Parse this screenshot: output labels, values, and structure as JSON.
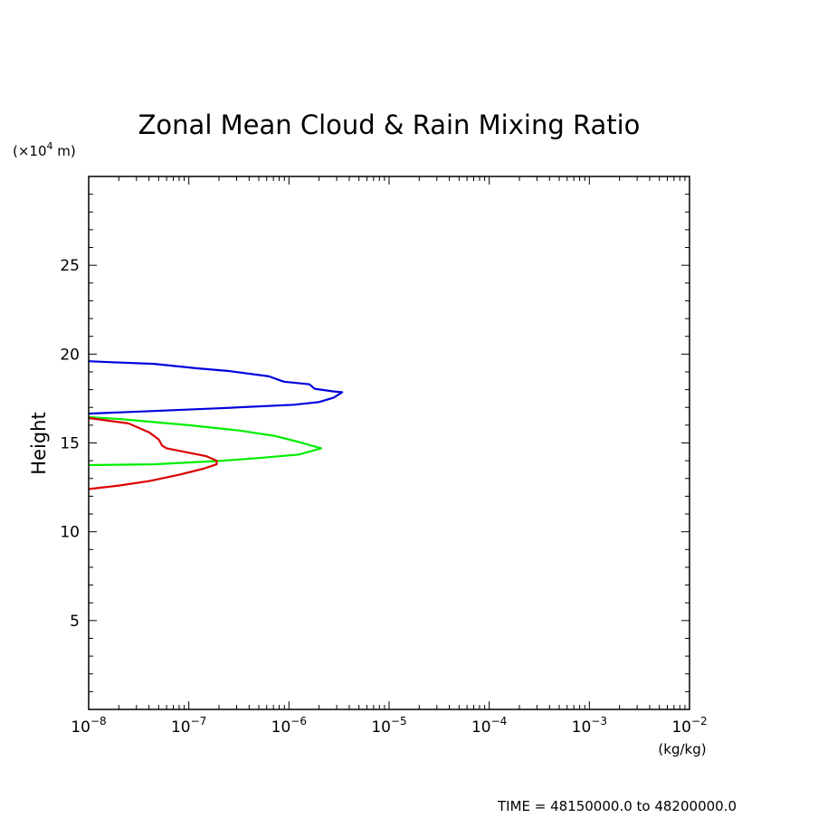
{
  "chart_data": {
    "type": "line",
    "title": "Zonal Mean Cloud & Rain Mixing Ratio",
    "ylabel": "Height",
    "y_unit_label": {
      "prefix": "(×10",
      "exp": "4",
      "suffix": " m)"
    },
    "x_unit_label": "(kg/kg)",
    "x_scale": "log",
    "xlim": [
      1e-08,
      0.01
    ],
    "ylim": [
      0,
      30
    ],
    "y_ticks": [
      5,
      10,
      15,
      20,
      25
    ],
    "y_tick_labels": [
      "5",
      "10",
      "15",
      "20",
      "25"
    ],
    "x_ticks": [
      {
        "base": "10",
        "exp": "−8",
        "value": 1e-08
      },
      {
        "base": "10",
        "exp": "−7",
        "value": 1e-07
      },
      {
        "base": "10",
        "exp": "−6",
        "value": 1e-06
      },
      {
        "base": "10",
        "exp": "−5",
        "value": 1e-05
      },
      {
        "base": "10",
        "exp": "−4",
        "value": 0.0001
      },
      {
        "base": "10",
        "exp": "−3",
        "value": 0.001
      },
      {
        "base": "10",
        "exp": "−2",
        "value": 0.01
      }
    ],
    "footer": "TIME = 48150000.0 to 48200000.0",
    "series": [
      {
        "color": "#0000dd",
        "points": [
          [
            1e-08,
            19.6
          ],
          [
            1.6e-08,
            19.55
          ],
          [
            4.5e-08,
            19.45
          ],
          [
            1.2e-07,
            19.2
          ],
          [
            2.5e-07,
            19.05
          ],
          [
            6.3e-07,
            18.75
          ],
          [
            8.9e-07,
            18.45
          ],
          [
            1.6e-06,
            18.3
          ],
          [
            1.8e-06,
            18.05
          ],
          [
            2.8e-06,
            17.9
          ],
          [
            3.4e-06,
            17.85
          ],
          [
            2.8e-06,
            17.55
          ],
          [
            2e-06,
            17.3
          ],
          [
            1.12e-06,
            17.15
          ],
          [
            2e-07,
            16.95
          ],
          [
            4.5e-08,
            16.8
          ],
          [
            1e-08,
            16.65
          ]
        ]
      },
      {
        "color": "#00ee00",
        "points": [
          [
            1e-08,
            16.45
          ],
          [
            2e-08,
            16.35
          ],
          [
            1e-07,
            16.0
          ],
          [
            3.2e-07,
            15.7
          ],
          [
            7.1e-07,
            15.4
          ],
          [
            1.26e-06,
            15.05
          ],
          [
            2.1e-06,
            14.7
          ],
          [
            1.26e-06,
            14.35
          ],
          [
            5e-07,
            14.15
          ],
          [
            2.2e-07,
            14.0
          ],
          [
            4.5e-08,
            13.8
          ],
          [
            1e-08,
            13.75
          ]
        ]
      },
      {
        "color": "#dd0000",
        "points": [
          [
            1e-08,
            16.4
          ],
          [
            2.5e-08,
            16.1
          ],
          [
            4e-08,
            15.6
          ],
          [
            5e-08,
            15.2
          ],
          [
            5.4e-08,
            14.85
          ],
          [
            6e-08,
            14.7
          ],
          [
            1e-07,
            14.45
          ],
          [
            1.5e-07,
            14.25
          ],
          [
            1.9e-07,
            14.0
          ],
          [
            1.9e-07,
            13.8
          ],
          [
            1.4e-07,
            13.55
          ],
          [
            7.9e-08,
            13.2
          ],
          [
            4e-08,
            12.85
          ],
          [
            2e-08,
            12.6
          ],
          [
            1e-08,
            12.4
          ]
        ]
      }
    ]
  }
}
